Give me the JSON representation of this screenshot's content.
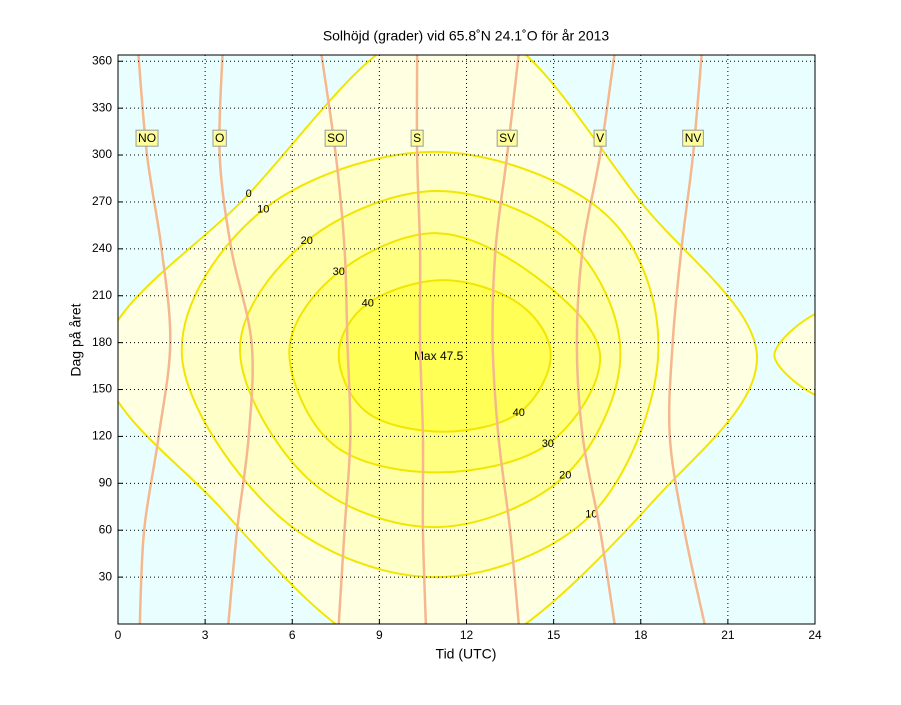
{
  "chart_data": {
    "type": "contour",
    "title": "Solhöjd (grader) vid 65.8˚N 24.1˚O för år 2013",
    "xlabel": "Tid (UTC)",
    "ylabel": "Dag på året",
    "xlim": [
      0,
      24
    ],
    "ylim": [
      0,
      364
    ],
    "xticks": [
      0,
      3,
      6,
      9,
      12,
      15,
      18,
      21,
      24
    ],
    "yticks": [
      30,
      60,
      90,
      120,
      150,
      180,
      210,
      240,
      270,
      300,
      330,
      360
    ],
    "grid": true,
    "background": "#e9ffff",
    "line_color": "#f2e600",
    "contours": [
      {
        "level": 0,
        "fill": "#ffffe2",
        "x": [
          -0.5,
          4.5,
          9.5,
          13.5,
          18,
          22,
          18.5,
          13,
          8.5,
          3.5
        ],
        "y": [
          172,
          275,
          372,
          372,
          270,
          172,
          80,
          -12,
          -12,
          75
        ]
      },
      {
        "level": 0,
        "fill": "#ffffe2",
        "x": [
          22.6,
          24.3,
          25,
          24.3
        ],
        "y": [
          172,
          200,
          172,
          145
        ]
      },
      {
        "level": 10,
        "fill": "#ffffc8",
        "x": [
          2.2,
          5,
          11,
          16.8,
          18.6,
          16.3,
          11,
          5.6
        ],
        "y": [
          172,
          265,
          302,
          262,
          172,
          70,
          30,
          68
        ]
      },
      {
        "level": 20,
        "fill": "#ffffa6",
        "x": [
          4.2,
          6.5,
          11,
          15.5,
          17.3,
          15.4,
          11,
          6.6
        ],
        "y": [
          175,
          245,
          277,
          245,
          172,
          95,
          62,
          92
        ]
      },
      {
        "level": 30,
        "fill": "#ffff80",
        "x": [
          5.9,
          7.6,
          11,
          14.4,
          16.6,
          14.8,
          11,
          7.4
        ],
        "y": [
          175,
          225,
          250,
          222,
          172,
          115,
          97,
          115
        ]
      },
      {
        "level": 40,
        "fill": "#ffff55",
        "x": [
          7.6,
          8.6,
          11.2,
          13.8,
          14.9,
          13.8,
          11.2,
          8.6
        ],
        "y": [
          172,
          205,
          220,
          205,
          172,
          135,
          123,
          135
        ]
      }
    ],
    "annotation": "Max 47.5",
    "azimuth_color": "#f5b88e",
    "azimuths": [
      {
        "name": "NO",
        "x": [
          0.7,
          1.0,
          1.5,
          1.8,
          1.4,
          0.9,
          0.75
        ],
        "y": [
          365,
          300,
          240,
          180,
          120,
          60,
          0
        ]
      },
      {
        "name": "O",
        "x": [
          3.6,
          3.5,
          3.9,
          4.6,
          4.5,
          4.1,
          3.8
        ],
        "y": [
          365,
          300,
          240,
          180,
          120,
          60,
          0
        ]
      },
      {
        "name": "SO",
        "x": [
          7.0,
          7.5,
          7.8,
          7.9,
          8.0,
          7.8,
          7.6
        ],
        "y": [
          365,
          300,
          240,
          180,
          120,
          60,
          0
        ]
      },
      {
        "name": "S",
        "x": [
          10.3,
          10.3,
          10.4,
          10.4,
          10.5,
          10.5,
          10.6
        ],
        "y": [
          365,
          300,
          240,
          180,
          120,
          60,
          0
        ]
      },
      {
        "name": "SV",
        "x": [
          13.8,
          13.4,
          13.0,
          12.9,
          13.1,
          13.5,
          13.8
        ],
        "y": [
          365,
          300,
          240,
          180,
          120,
          60,
          0
        ]
      },
      {
        "name": "V",
        "x": [
          17.1,
          16.6,
          16.0,
          15.8,
          16.0,
          16.6,
          17.1
        ],
        "y": [
          365,
          300,
          240,
          180,
          120,
          60,
          0
        ]
      },
      {
        "name": "NV",
        "x": [
          20.1,
          19.8,
          19.4,
          19.1,
          19.0,
          19.5,
          20.2
        ],
        "y": [
          365,
          300,
          240,
          180,
          120,
          60,
          0
        ]
      }
    ]
  }
}
